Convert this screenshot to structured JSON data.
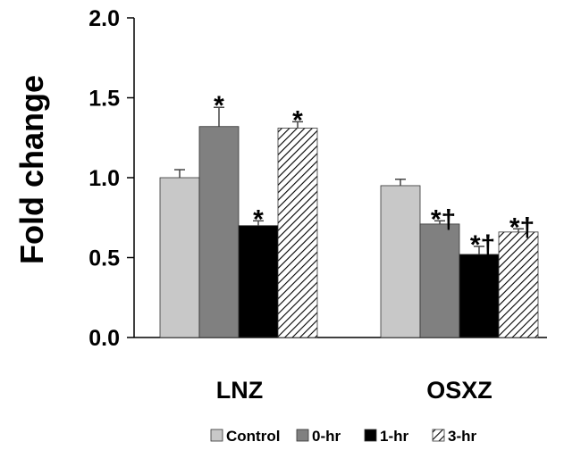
{
  "chart_data": {
    "type": "bar",
    "title": "",
    "xlabel": "",
    "ylabel": "Fold change",
    "ylim": [
      0,
      2.0
    ],
    "yticks": [
      "0.0",
      "0.5",
      "1.0",
      "1.5",
      "2.0"
    ],
    "categories": [
      "LNZ",
      "OSXZ"
    ],
    "series": [
      {
        "name": "Control",
        "values": [
          1.0,
          0.95
        ],
        "errors": [
          0.05,
          0.04
        ],
        "color": "#c8c8c8",
        "pattern": "solid",
        "annotations": [
          "",
          ""
        ]
      },
      {
        "name": "0-hr",
        "values": [
          1.32,
          0.71
        ],
        "errors": [
          0.12,
          0.02
        ],
        "color": "#808080",
        "pattern": "solid",
        "annotations": [
          "*",
          "*†"
        ]
      },
      {
        "name": "1-hr",
        "values": [
          0.7,
          0.52
        ],
        "errors": [
          0.03,
          0.05
        ],
        "color": "#000000",
        "pattern": "solid",
        "annotations": [
          "*",
          "*†"
        ]
      },
      {
        "name": "3-hr",
        "values": [
          1.31,
          0.66
        ],
        "errors": [
          0.04,
          0.02
        ],
        "color": "#ffffff",
        "pattern": "diagonal-hatch",
        "annotations": [
          "*",
          "*†"
        ]
      }
    ],
    "legend_position": "bottom"
  }
}
